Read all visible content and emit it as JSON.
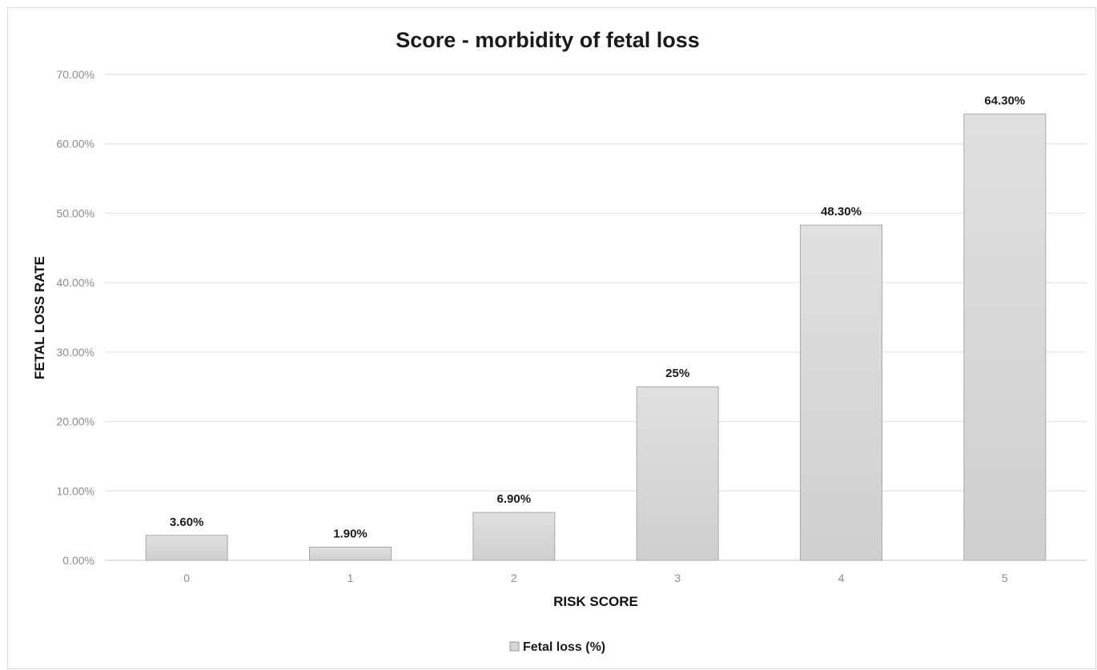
{
  "chart_data": {
    "type": "bar",
    "title": "Score -  morbidity of fetal loss",
    "xlabel": "RISK SCORE",
    "ylabel": "FETAL LOSS RATE",
    "categories": [
      "0",
      "1",
      "2",
      "3",
      "4",
      "5"
    ],
    "series": [
      {
        "name": "Fetal loss (%)",
        "values": [
          3.6,
          1.9,
          6.9,
          25,
          48.3,
          64.3
        ],
        "data_labels": [
          "3.60%",
          "1.90%",
          "6.90%",
          "25%",
          "48.30%",
          "64.30%"
        ],
        "color": "#d6d6d6"
      }
    ],
    "ylim": [
      0,
      70
    ],
    "yticks": [
      0,
      10,
      20,
      30,
      40,
      50,
      60,
      70
    ],
    "ytick_labels": [
      "0.00%",
      "10.00%",
      "20.00%",
      "30.00%",
      "40.00%",
      "50.00%",
      "60.00%",
      "70.00%"
    ],
    "grid": true,
    "legend_position": "bottom"
  }
}
